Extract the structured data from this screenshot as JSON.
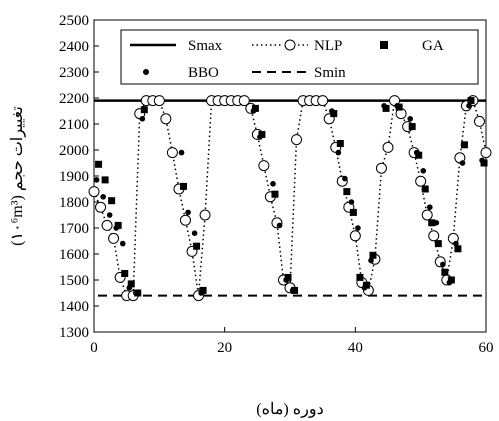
{
  "chart_data": {
    "type": "line",
    "xlabel": "دوره (ماه)",
    "ylabel": "تغییرات حجم (۱۰⁶m³)",
    "ylabel_rtl": "تغییرات حجم",
    "ylabel_unit": "(۱۰⁶m³)",
    "xlim": [
      0,
      60
    ],
    "ylim": [
      1300,
      2500
    ],
    "x_ticks": [
      0,
      20,
      40,
      60
    ],
    "y_ticks": [
      1300,
      1400,
      1500,
      1600,
      1700,
      1800,
      1900,
      2000,
      2100,
      2200,
      2300,
      2400,
      2500
    ],
    "grid": false,
    "legend_position": "top",
    "smax": 2190,
    "smin": 1440,
    "legend": {
      "smax": "Smax",
      "nlp": "NLP",
      "ga": "GA",
      "bbo": "BBO",
      "smin": "Smin"
    },
    "series": [
      {
        "name": "NLP",
        "marker": "open-circle",
        "line": "dotted",
        "x": [
          0,
          1,
          2,
          3,
          4,
          5,
          6,
          7,
          8,
          9,
          10,
          11,
          12,
          13,
          14,
          15,
          16,
          17,
          18,
          19,
          20,
          21,
          22,
          23,
          24,
          25,
          26,
          27,
          28,
          29,
          30,
          31,
          32,
          33,
          34,
          35,
          36,
          37,
          38,
          39,
          40,
          41,
          42,
          43,
          44,
          45,
          46,
          47,
          48,
          49,
          50,
          51,
          52,
          53,
          54,
          55,
          56,
          57,
          58,
          59,
          60
        ],
        "values": [
          1840,
          1780,
          1710,
          1660,
          1510,
          1440,
          1440,
          2140,
          2190,
          2190,
          2190,
          2120,
          1990,
          1850,
          1730,
          1610,
          1440,
          1750,
          2190,
          2190,
          2190,
          2190,
          2190,
          2190,
          2160,
          2060,
          1940,
          1820,
          1720,
          1500,
          1470,
          2040,
          2190,
          2190,
          2190,
          2190,
          2120,
          2010,
          1880,
          1780,
          1670,
          1490,
          1460,
          1580,
          1930,
          2010,
          2190,
          2140,
          2090,
          1990,
          1880,
          1750,
          1670,
          1570,
          1500,
          1660,
          1970,
          2170,
          2190,
          2110,
          1990
        ]
      },
      {
        "name": "GA",
        "marker": "square",
        "x": [
          0.7,
          1.7,
          2.7,
          3.7,
          4.7,
          5.7,
          6.7,
          7.7,
          13.7,
          15.7,
          16.7,
          24.7,
          25.7,
          27.7,
          29.7,
          30.7,
          36.7,
          37.7,
          38.7,
          39.7,
          40.7,
          41.7,
          42.7,
          44.7,
          46.7,
          48.7,
          49.7,
          50.7,
          51.7,
          52.7,
          53.7,
          54.7,
          55.7,
          56.7,
          57.7,
          59.7
        ],
        "values": [
          1945,
          1885,
          1805,
          1710,
          1525,
          1485,
          1450,
          2155,
          1860,
          1630,
          1460,
          2160,
          2060,
          1830,
          1510,
          1460,
          2140,
          2025,
          1840,
          1760,
          1510,
          1480,
          1595,
          2160,
          2165,
          2090,
          1980,
          1850,
          1720,
          1640,
          1530,
          1500,
          1620,
          2020,
          2190,
          1950
        ]
      },
      {
        "name": "BBO",
        "marker": "dot",
        "x": [
          0.4,
          1.4,
          2.4,
          3.4,
          4.4,
          5.4,
          6.4,
          7.4,
          13.4,
          14.4,
          15.4,
          16.4,
          24.4,
          25.4,
          27.4,
          28.4,
          29.4,
          30.4,
          36.4,
          37.4,
          38.4,
          39.4,
          40.4,
          41.4,
          42.4,
          44.4,
          46.4,
          48.4,
          49.4,
          50.4,
          51.4,
          52.4,
          53.4,
          54.4,
          55.4,
          56.4,
          57.4,
          59.4
        ],
        "values": [
          1885,
          1820,
          1750,
          1700,
          1640,
          1470,
          1450,
          2120,
          1990,
          1760,
          1680,
          1450,
          2150,
          2050,
          1870,
          1710,
          1500,
          1460,
          2150,
          1990,
          1890,
          1800,
          1700,
          1470,
          1575,
          2170,
          2170,
          2120,
          1990,
          1920,
          1780,
          1720,
          1560,
          1490,
          1640,
          1950,
          2170,
          1960
        ]
      }
    ]
  }
}
